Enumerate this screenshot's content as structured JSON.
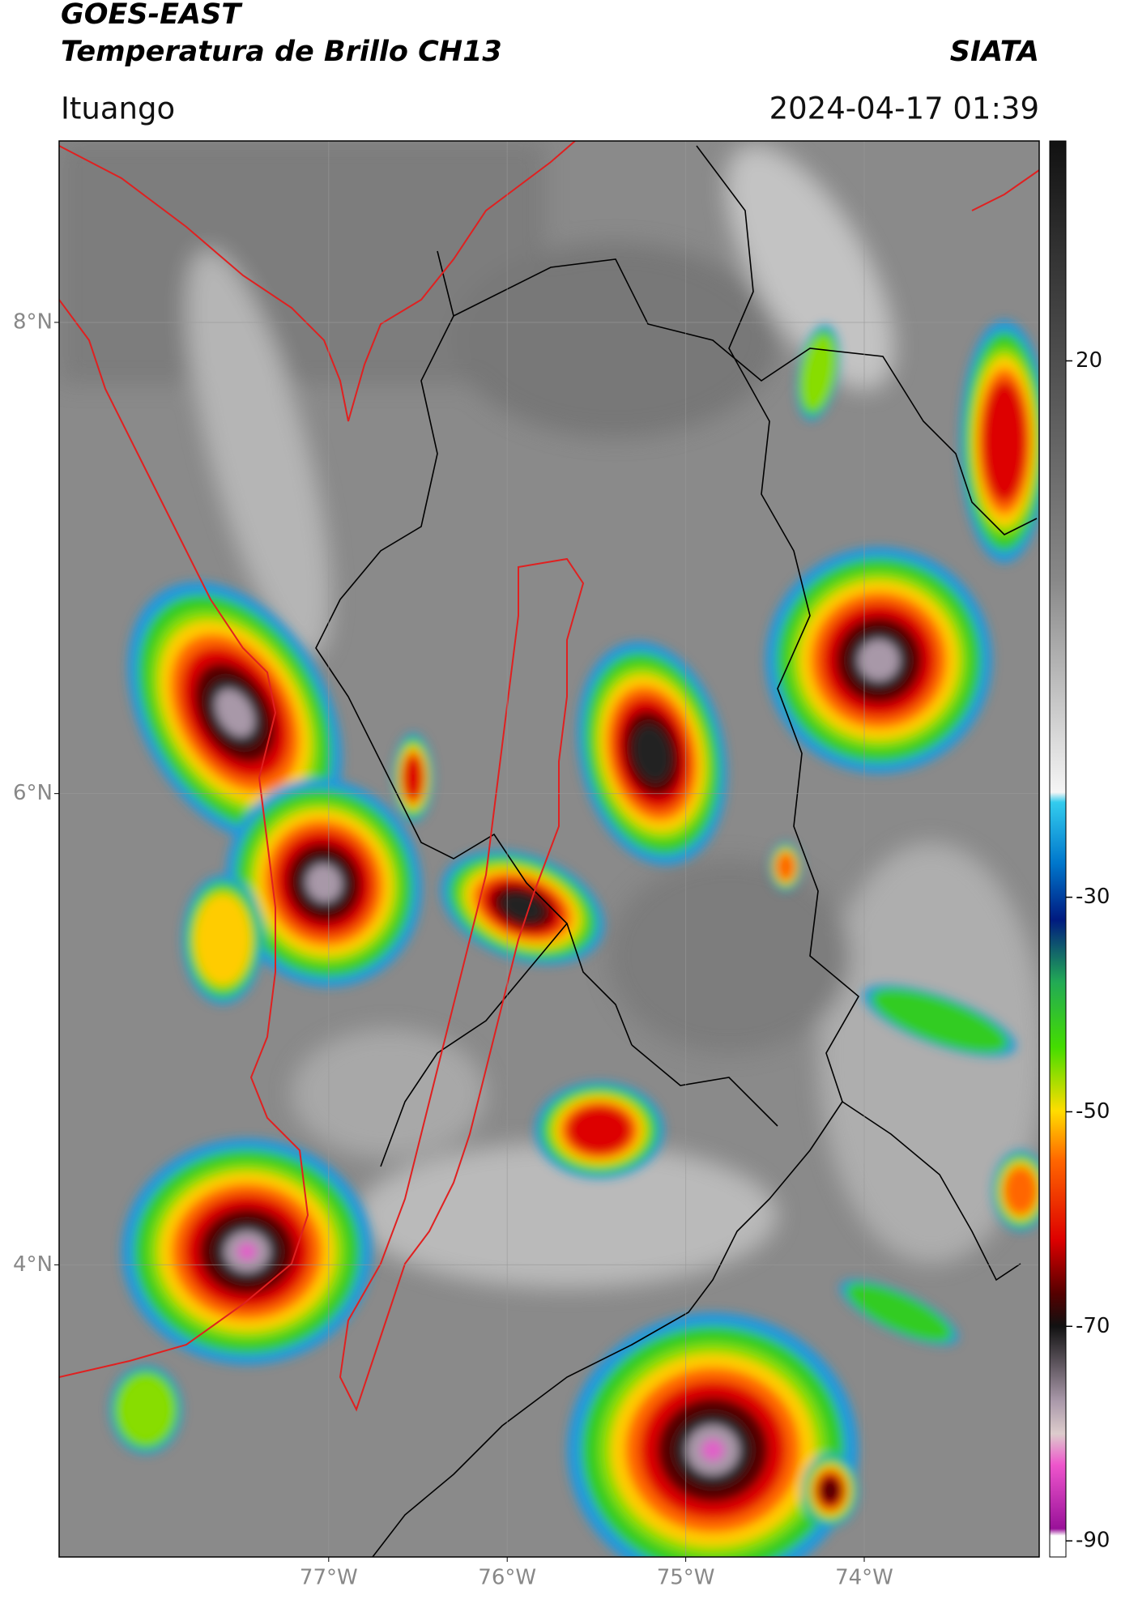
{
  "header": {
    "title": "GOES-EAST",
    "subtitle": "Temperatura de Brillo CH13",
    "source": "SIATA",
    "location": "Ituango",
    "datetime": "2024-04-17 01:39"
  },
  "map": {
    "xlim": [
      -78.51,
      -73.02
    ],
    "ylim": [
      2.76,
      8.77
    ],
    "xticks": [
      {
        "value": -77,
        "label": "77°W"
      },
      {
        "value": -76,
        "label": "76°W"
      },
      {
        "value": -75,
        "label": "75°W"
      },
      {
        "value": -74,
        "label": "74°W"
      }
    ],
    "yticks": [
      {
        "value": 8,
        "label": "8°N"
      },
      {
        "value": 6,
        "label": "6°N"
      },
      {
        "value": 4,
        "label": "4°N"
      }
    ]
  },
  "colorbar": {
    "lim": [
      -91.5,
      40.5
    ],
    "ticks": [
      20,
      -30,
      -50,
      -70,
      -90
    ]
  }
}
